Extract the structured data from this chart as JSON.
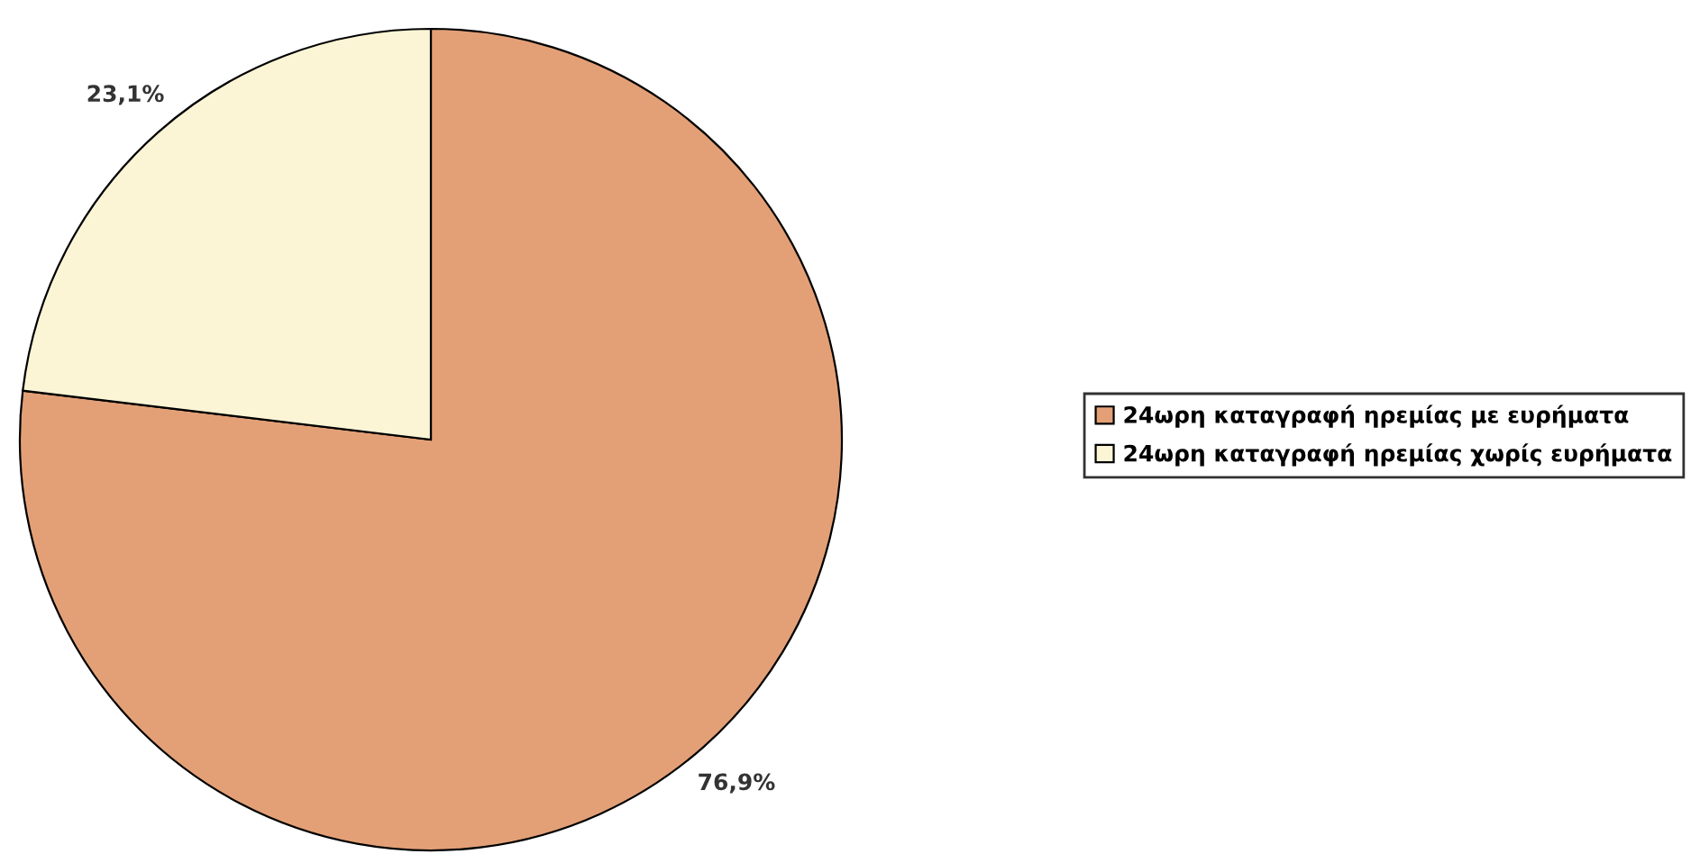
{
  "chart_data": {
    "type": "pie",
    "categories": [
      "24ωρη καταγραφή ηρεμίας με ευρήματα",
      "24ωρη καταγραφή ηρεμίας χωρίς ευρήματα"
    ],
    "values": [
      76.9,
      23.1
    ],
    "colors": [
      "#e3a077",
      "#fbf5d6"
    ],
    "value_labels": [
      "76,9%",
      "23,1%"
    ],
    "legend": "right"
  }
}
